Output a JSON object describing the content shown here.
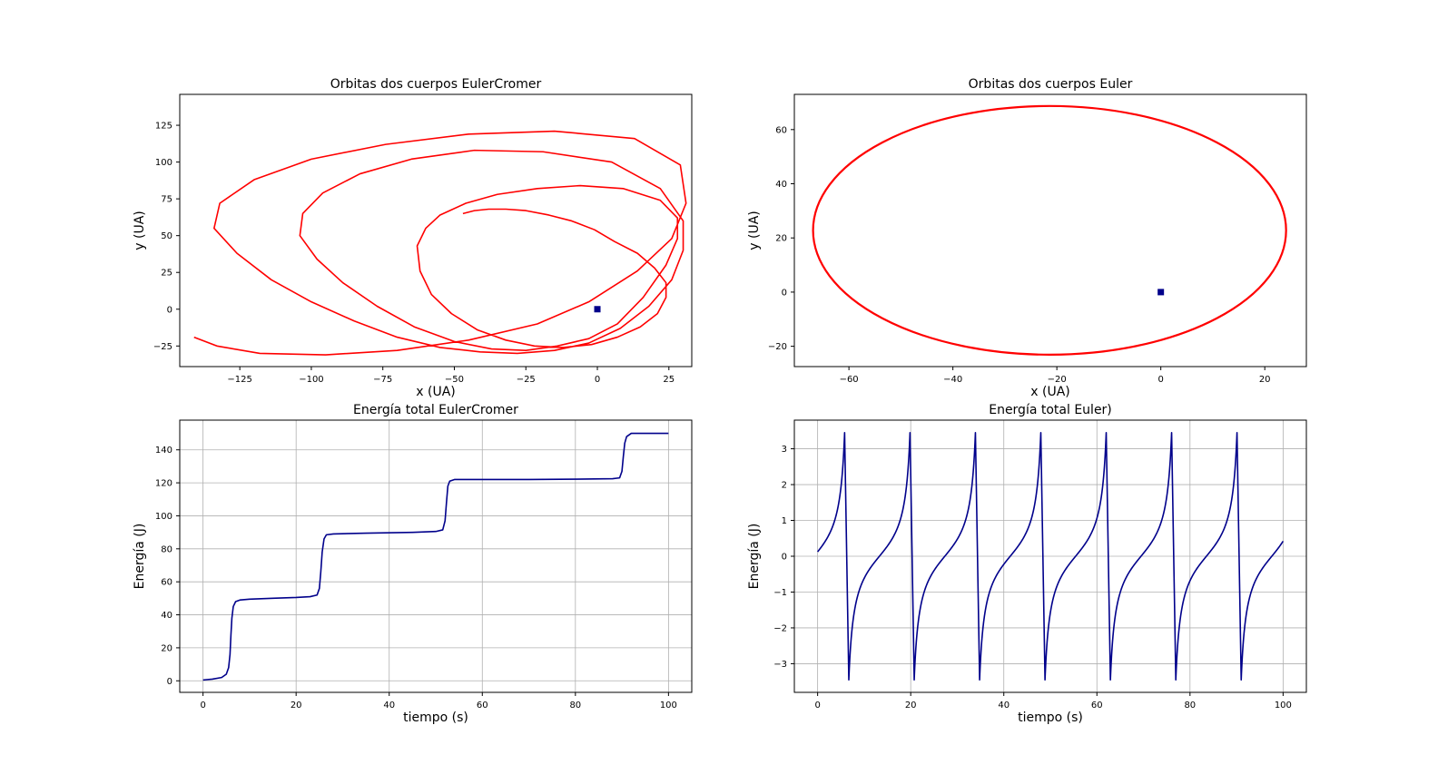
{
  "figure": {
    "background": "#ffffff"
  },
  "chart_data": [
    {
      "id": "orbit-ec",
      "type": "line",
      "title": "Orbitas dos cuerpos EulerCromer",
      "xlabel": "x (UA)",
      "ylabel": "y (UA)",
      "xlim": [
        -146,
        33
      ],
      "ylim": [
        -39,
        146
      ],
      "xticks": [
        -125,
        -100,
        -75,
        -50,
        -25,
        0,
        25
      ],
      "yticks": [
        -25,
        0,
        25,
        50,
        75,
        100,
        125
      ],
      "grid": false,
      "series": [
        {
          "color": "#ff0000",
          "x": [
            -47,
            -43,
            -38,
            -32,
            -25,
            -17,
            -9,
            -1,
            6,
            14,
            20,
            24,
            24,
            21,
            15,
            7,
            -2,
            -12,
            -22,
            -32,
            -42,
            -51,
            -58,
            -62,
            -63,
            -60,
            -55,
            -46,
            -35,
            -21,
            -6,
            9,
            22,
            28,
            28,
            24,
            16,
            7,
            -3,
            -14,
            -25,
            -37,
            -50,
            -64,
            -77,
            -89,
            -98,
            -104,
            -103,
            -96,
            -83,
            -65,
            -43,
            -19,
            5,
            22,
            30,
            30,
            26,
            18,
            8,
            -3,
            -15,
            -28,
            -41,
            -55,
            -70,
            -85,
            -100,
            -114,
            -126,
            -134,
            -132,
            -120,
            -100,
            -74,
            -45,
            -15,
            13,
            29,
            31,
            26,
            14,
            -3,
            -21,
            -45,
            -70,
            -95,
            -118,
            -133,
            -141
          ],
          "y": [
            65,
            67,
            68,
            68,
            67,
            64,
            60,
            54,
            46,
            38,
            28,
            18,
            8,
            -3,
            -12,
            -19,
            -24,
            -26,
            -25,
            -21,
            -14,
            -3,
            10,
            26,
            43,
            55,
            64,
            72,
            78,
            82,
            84,
            82,
            74,
            62,
            48,
            30,
            8,
            -10,
            -20,
            -25,
            -28,
            -27,
            -22,
            -12,
            2,
            18,
            34,
            50,
            65,
            79,
            92,
            102,
            108,
            107,
            100,
            82,
            60,
            40,
            20,
            2,
            -13,
            -23,
            -28,
            -30,
            -29,
            -26,
            -19,
            -8,
            5,
            20,
            38,
            55,
            72,
            88,
            102,
            112,
            119,
            121,
            116,
            98,
            72,
            48,
            26,
            5,
            -10,
            -21,
            -28,
            -31,
            -30,
            -25,
            -19
          ]
        },
        {
          "color": "#00008b",
          "marker": "square",
          "x": [
            0
          ],
          "y": [
            0
          ]
        }
      ]
    },
    {
      "id": "orbit-euler",
      "type": "line",
      "title": "Orbitas dos cuerpos Euler",
      "xlabel": "x (UA)",
      "ylabel": "y (UA)",
      "xlim": [
        -70.5,
        28
      ],
      "ylim": [
        -27.5,
        73
      ],
      "xticks": [
        -60,
        -40,
        -20,
        0,
        20
      ],
      "yticks": [
        -20,
        0,
        20,
        40,
        60
      ],
      "grid": false,
      "series": [
        {
          "color": "#ff0000",
          "ellipse": {
            "cx": -21.4,
            "cy": 22.8,
            "a": 45.5,
            "b": 45.9,
            "rotation_deg": 0
          },
          "x": [],
          "y": []
        },
        {
          "color": "#00008b",
          "marker": "square",
          "x": [
            0
          ],
          "y": [
            0
          ]
        }
      ]
    },
    {
      "id": "energy-ec",
      "type": "line",
      "title": "Energía total EulerCromer",
      "xlabel": "tiempo (s)",
      "ylabel": "Energía (J)",
      "xlim": [
        -5,
        105
      ],
      "ylim": [
        -7,
        158
      ],
      "xticks": [
        0,
        20,
        40,
        60,
        80,
        100
      ],
      "yticks": [
        0,
        20,
        40,
        60,
        80,
        100,
        120,
        140
      ],
      "grid": true,
      "series": [
        {
          "color": "#00008b",
          "x": [
            0,
            2,
            4,
            5,
            5.5,
            5.8,
            6,
            6.2,
            6.5,
            7,
            8,
            10,
            15,
            20,
            23,
            24.5,
            25,
            25.3,
            25.6,
            26,
            26.5,
            28,
            35,
            45,
            50,
            51.5,
            52,
            52.3,
            52.6,
            53,
            54,
            60,
            70,
            80,
            88,
            89.5,
            90,
            90.3,
            90.6,
            91,
            92,
            95,
            100
          ],
          "y": [
            0.5,
            1,
            2,
            4,
            8,
            16,
            28,
            38,
            45,
            48,
            49,
            49.5,
            50,
            50.5,
            51,
            52,
            56,
            66,
            78,
            86,
            88.5,
            89,
            89.5,
            90,
            90.5,
            91.5,
            97,
            108,
            118,
            121,
            122,
            122,
            122,
            122.2,
            122.5,
            123,
            127,
            136,
            144,
            148,
            150,
            150,
            150
          ]
        }
      ]
    },
    {
      "id": "energy-euler",
      "type": "line",
      "title": "Energía total Euler)",
      "xlabel": "tiempo (s)",
      "ylabel": "Energía (J)",
      "xlim": [
        -5,
        105
      ],
      "ylim": [
        -3.8,
        3.8
      ],
      "xticks": [
        0,
        20,
        40,
        60,
        80,
        100
      ],
      "yticks": [
        -3,
        -2,
        -1,
        0,
        1,
        2,
        3
      ],
      "grid": true,
      "series": [
        {
          "color": "#00008b",
          "periodic": {
            "period": 14.05,
            "x_peak": 5.8,
            "peak": 3.45,
            "trough": -3.45,
            "x_end": 100,
            "end_value": 0.1
          },
          "x": [],
          "y": []
        }
      ]
    }
  ]
}
